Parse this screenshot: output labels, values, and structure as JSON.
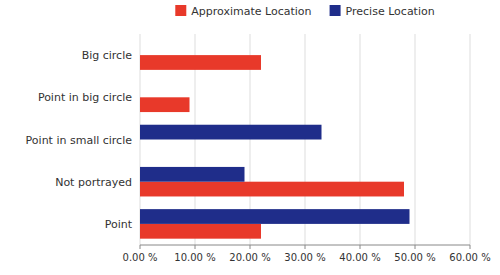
{
  "chart_data": {
    "type": "bar",
    "orientation": "horizontal",
    "categories": [
      "Big circle",
      "Point in big circle",
      "Point in small circle",
      "Not portrayed",
      "Point"
    ],
    "series": [
      {
        "name": "Approximate Location",
        "color": "#E8392A",
        "values": [
          22.0,
          9.0,
          0.0,
          48.0,
          22.0
        ]
      },
      {
        "name": "Precise Location",
        "color": "#1F2D8A",
        "values": [
          0.0,
          0.0,
          33.0,
          19.0,
          49.0
        ]
      }
    ],
    "xlim": [
      0,
      60
    ],
    "xticks": [
      {
        "value": 0,
        "label": "0.00 %"
      },
      {
        "value": 10,
        "label": "10.00 %"
      },
      {
        "value": 20,
        "label": "20.00 %"
      },
      {
        "value": 30,
        "label": "30.00 %"
      },
      {
        "value": 40,
        "label": "40.00 %"
      },
      {
        "value": 50,
        "label": "50.00 %"
      },
      {
        "value": 60,
        "label": "60.00 %"
      }
    ],
    "grid": true,
    "legend": "top"
  }
}
